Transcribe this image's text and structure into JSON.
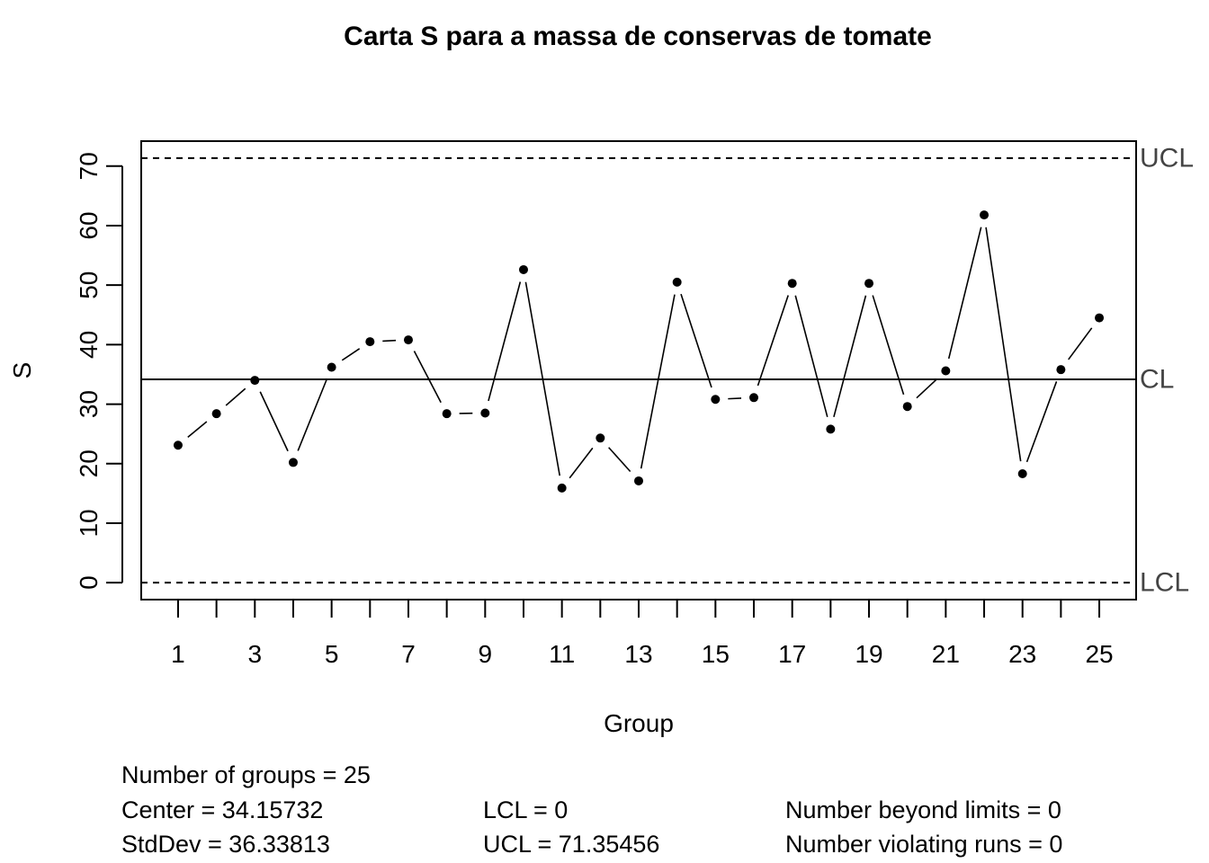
{
  "chart_data": {
    "type": "line",
    "title": "Carta S para a massa de conservas de tomate",
    "xlabel": "Group",
    "ylabel": "S",
    "x": [
      1,
      2,
      3,
      4,
      5,
      6,
      7,
      8,
      9,
      10,
      11,
      12,
      13,
      14,
      15,
      16,
      17,
      18,
      19,
      20,
      21,
      22,
      23,
      24,
      25
    ],
    "values": [
      23.1,
      28.4,
      34.0,
      20.2,
      36.2,
      40.5,
      40.8,
      28.4,
      28.5,
      52.6,
      15.9,
      24.3,
      17.1,
      50.5,
      30.8,
      31.1,
      50.3,
      25.8,
      50.3,
      29.6,
      35.6,
      61.8,
      18.3,
      35.8,
      44.5
    ],
    "x_ticks": [
      "1",
      "3",
      "5",
      "7",
      "9",
      "11",
      "13",
      "15",
      "17",
      "19",
      "21",
      "23",
      "25"
    ],
    "y_ticks": [
      "0",
      "10",
      "20",
      "30",
      "40",
      "50",
      "60",
      "70"
    ],
    "ylim": [
      -2.85,
      74.2
    ],
    "xlim": [
      0.04,
      25.96
    ],
    "center": 34.15732,
    "ucl": 71.35456,
    "lcl": 0,
    "limit_labels": {
      "ucl": "UCL",
      "cl": "CL",
      "lcl": "LCL"
    },
    "grid": false
  },
  "stats": {
    "groups": "Number of groups = 25",
    "center": "Center = 34.15732",
    "stddev": "StdDev = 36.33813",
    "lcl": "LCL = 0",
    "ucl": "UCL = 71.35456",
    "beyond": "Number beyond limits = 0",
    "runs": "Number violating runs = 0"
  }
}
